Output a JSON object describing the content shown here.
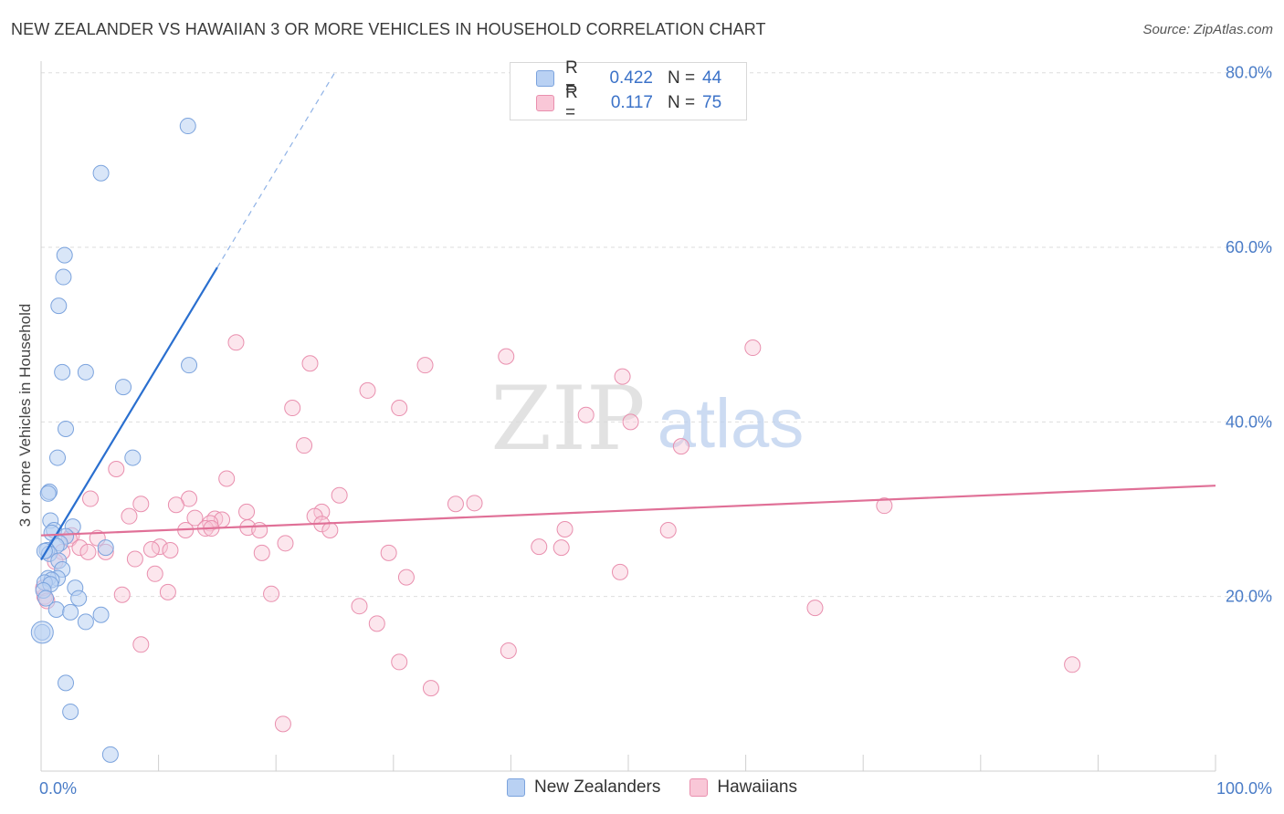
{
  "title": "NEW ZEALANDER VS HAWAIIAN 3 OR MORE VEHICLES IN HOUSEHOLD CORRELATION CHART",
  "source": "Source: ZipAtlas.com",
  "watermark": {
    "zip": "ZIP",
    "atlas": "atlas"
  },
  "legend": {
    "rows": [
      {
        "r_label": "R =",
        "r_value": "0.422",
        "n_label": "N =",
        "n_value": "44",
        "fill": "#b9d1f3",
        "stroke": "#7ba3dd"
      },
      {
        "r_label": "R =",
        "r_value": "0.117",
        "n_label": "N =",
        "n_value": "75",
        "fill": "#f9c7d7",
        "stroke": "#e98fae"
      }
    ]
  },
  "bottom_legend": [
    "New Zealanders",
    "Hawaiians"
  ],
  "chart_data": {
    "type": "scatter",
    "title": "NEW ZEALANDER VS HAWAIIAN 3 OR MORE VEHICLES IN HOUSEHOLD CORRELATION CHART",
    "xlabel": "",
    "ylabel": "3 or more Vehicles in Household",
    "xlim": [
      0,
      100
    ],
    "ylim": [
      0,
      80
    ],
    "x_tick_labels": [
      "0.0%",
      "100.0%"
    ],
    "y_ticks": [
      20,
      40,
      60,
      80
    ],
    "y_tick_labels": [
      "20.0%",
      "40.0%",
      "60.0%",
      "80.0%"
    ],
    "grid": true,
    "legend_position": "top-center",
    "colors": {
      "New Zealanders": "#b9d1f3",
      "Hawaiians": "#f9c7d7",
      "nz_line": "#2a6fcf",
      "hw_line": "#e07097"
    },
    "series": [
      {
        "name": "New Zealanders",
        "points": [
          [
            12.5,
            73.9
          ],
          [
            5.1,
            68.5
          ],
          [
            2.0,
            59.1
          ],
          [
            1.9,
            56.6
          ],
          [
            1.5,
            53.3
          ],
          [
            1.8,
            45.7
          ],
          [
            3.8,
            45.7
          ],
          [
            12.6,
            46.5
          ],
          [
            7.0,
            44.0
          ],
          [
            2.1,
            39.2
          ],
          [
            1.4,
            35.9
          ],
          [
            7.8,
            35.9
          ],
          [
            0.7,
            32.0
          ],
          [
            0.6,
            31.8
          ],
          [
            0.8,
            28.7
          ],
          [
            2.7,
            28.0
          ],
          [
            1.1,
            27.6
          ],
          [
            0.9,
            27.3
          ],
          [
            2.1,
            26.9
          ],
          [
            1.6,
            26.1
          ],
          [
            1.3,
            25.8
          ],
          [
            5.5,
            25.6
          ],
          [
            0.5,
            25.3
          ],
          [
            0.7,
            24.9
          ],
          [
            1.5,
            24.1
          ],
          [
            1.8,
            23.1
          ],
          [
            1.4,
            22.1
          ],
          [
            0.6,
            22.1
          ],
          [
            0.9,
            21.9
          ],
          [
            0.3,
            21.6
          ],
          [
            0.8,
            21.4
          ],
          [
            2.9,
            21.0
          ],
          [
            0.2,
            20.7
          ],
          [
            3.2,
            19.8
          ],
          [
            0.4,
            19.8
          ],
          [
            1.3,
            18.5
          ],
          [
            2.5,
            18.2
          ],
          [
            5.1,
            17.9
          ],
          [
            3.8,
            17.1
          ],
          [
            0.1,
            15.9
          ],
          [
            2.1,
            10.1
          ],
          [
            2.5,
            6.8
          ],
          [
            5.9,
            1.9
          ],
          [
            0.3,
            25.2
          ]
        ]
      },
      {
        "name": "Hawaiians",
        "points": [
          [
            16.6,
            49.1
          ],
          [
            60.6,
            48.5
          ],
          [
            39.6,
            47.5
          ],
          [
            22.9,
            46.7
          ],
          [
            32.7,
            46.5
          ],
          [
            49.5,
            45.2
          ],
          [
            27.8,
            43.6
          ],
          [
            21.4,
            41.6
          ],
          [
            30.5,
            41.6
          ],
          [
            46.4,
            40.8
          ],
          [
            50.2,
            40.0
          ],
          [
            22.4,
            37.3
          ],
          [
            54.5,
            37.2
          ],
          [
            6.4,
            34.6
          ],
          [
            15.8,
            33.5
          ],
          [
            25.4,
            31.6
          ],
          [
            4.2,
            31.2
          ],
          [
            12.6,
            31.2
          ],
          [
            11.5,
            30.5
          ],
          [
            8.5,
            30.6
          ],
          [
            35.3,
            30.6
          ],
          [
            36.9,
            30.7
          ],
          [
            71.8,
            30.4
          ],
          [
            17.5,
            29.7
          ],
          [
            23.9,
            29.7
          ],
          [
            7.5,
            29.2
          ],
          [
            13.1,
            29.0
          ],
          [
            23.3,
            29.2
          ],
          [
            14.8,
            28.9
          ],
          [
            15.4,
            28.8
          ],
          [
            14.4,
            28.4
          ],
          [
            23.9,
            28.3
          ],
          [
            17.6,
            27.9
          ],
          [
            14.0,
            27.8
          ],
          [
            14.5,
            27.8
          ],
          [
            12.3,
            27.6
          ],
          [
            18.6,
            27.6
          ],
          [
            44.6,
            27.7
          ],
          [
            53.4,
            27.6
          ],
          [
            24.6,
            27.6
          ],
          [
            2.6,
            27.0
          ],
          [
            4.8,
            26.7
          ],
          [
            2.4,
            26.6
          ],
          [
            20.8,
            26.1
          ],
          [
            3.3,
            25.6
          ],
          [
            10.1,
            25.7
          ],
          [
            42.4,
            25.7
          ],
          [
            44.3,
            25.6
          ],
          [
            9.4,
            25.4
          ],
          [
            11.0,
            25.3
          ],
          [
            1.8,
            25.1
          ],
          [
            4.0,
            25.1
          ],
          [
            5.5,
            25.1
          ],
          [
            18.8,
            25.0
          ],
          [
            29.6,
            25.0
          ],
          [
            8.0,
            24.3
          ],
          [
            1.2,
            24.0
          ],
          [
            9.7,
            22.6
          ],
          [
            31.1,
            22.2
          ],
          [
            49.3,
            22.8
          ],
          [
            10.8,
            20.5
          ],
          [
            6.9,
            20.2
          ],
          [
            19.6,
            20.3
          ],
          [
            0.3,
            20.0
          ],
          [
            27.1,
            18.9
          ],
          [
            65.9,
            18.7
          ],
          [
            28.6,
            16.9
          ],
          [
            8.5,
            14.5
          ],
          [
            30.5,
            12.5
          ],
          [
            39.8,
            13.8
          ],
          [
            87.8,
            12.2
          ],
          [
            33.2,
            9.5
          ],
          [
            20.6,
            5.4
          ],
          [
            0.2,
            21.0
          ],
          [
            0.5,
            19.5
          ]
        ]
      }
    ],
    "trend_lines": [
      {
        "series": "New Zealanders",
        "x": [
          0,
          15
        ],
        "y": [
          24.2,
          57.7
        ],
        "dashed_extension_to": [
          25,
          80
        ]
      },
      {
        "series": "Hawaiians",
        "x": [
          0,
          100
        ],
        "y": [
          27.0,
          32.7
        ]
      }
    ]
  }
}
